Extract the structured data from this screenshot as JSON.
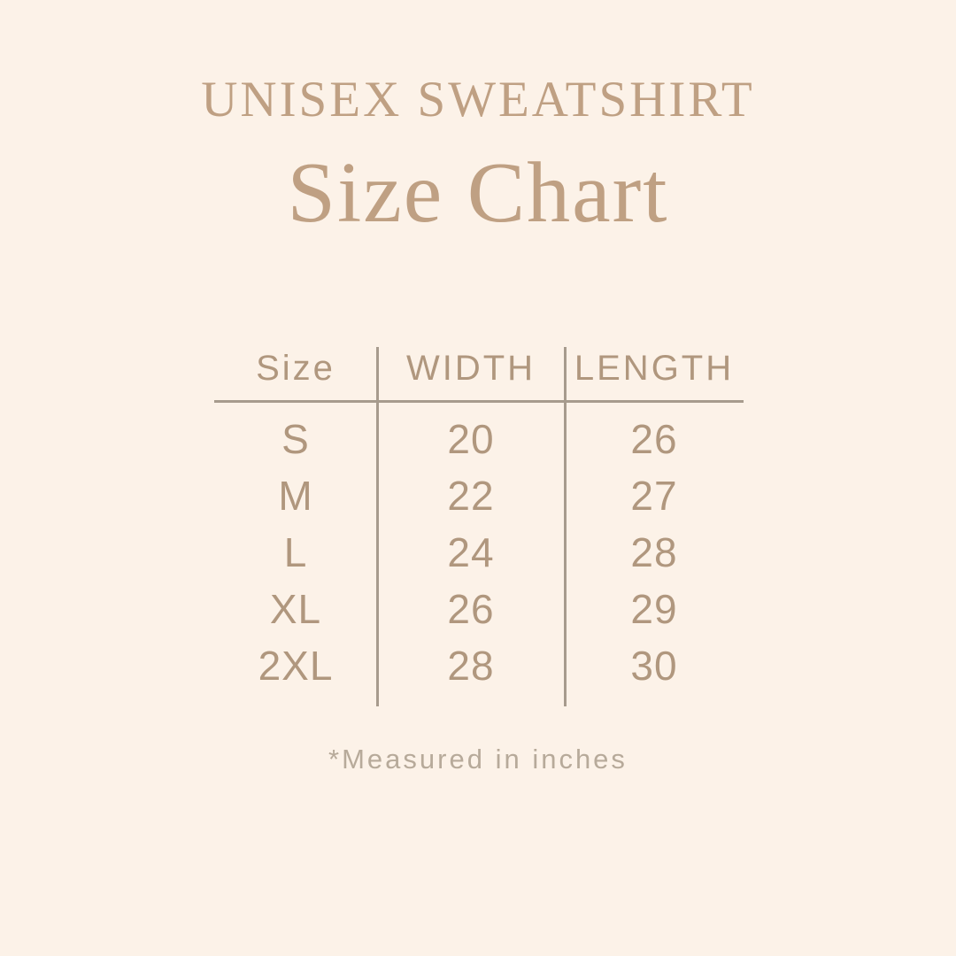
{
  "page": {
    "background_color": "#fcf2e8",
    "title_color": "#bfa083",
    "table_text_color": "#b0977e",
    "line_color": "#a79b8d",
    "footnote_color": "#b7aa9a"
  },
  "header": {
    "eyebrow": "UNISEX SWEATSHIRT",
    "title": "Size Chart"
  },
  "chart_data": {
    "type": "table",
    "title": "Size Chart",
    "subtitle": "UNISEX SWEATSHIRT",
    "columns": [
      "Size",
      "WIDTH",
      "LENGTH"
    ],
    "rows": [
      [
        "S",
        20,
        26
      ],
      [
        "M",
        22,
        27
      ],
      [
        "L",
        24,
        28
      ],
      [
        "XL",
        26,
        29
      ],
      [
        "2XL",
        28,
        30
      ]
    ],
    "units": "inches",
    "note": "*Measured in inches"
  },
  "footnote": {
    "text": "*Measured in inches"
  }
}
